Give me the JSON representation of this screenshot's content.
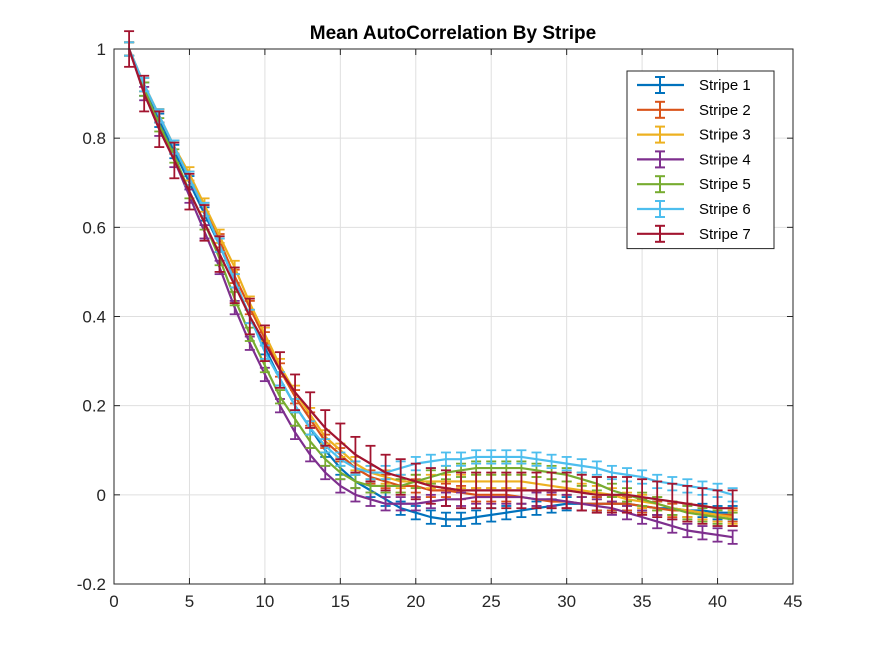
{
  "chart_data": {
    "type": "line",
    "title": "Mean AutoCorrelation By Stripe",
    "xlabel": "",
    "ylabel": "",
    "xlim": [
      0,
      45
    ],
    "ylim": [
      -0.2,
      1
    ],
    "x_ticks": [
      0,
      5,
      10,
      15,
      20,
      25,
      30,
      35,
      40,
      45
    ],
    "y_ticks": [
      -0.2,
      0,
      0.2,
      0.4,
      0.6,
      0.8,
      1
    ],
    "x_tick_labels": [
      "0",
      "5",
      "10",
      "15",
      "20",
      "25",
      "30",
      "35",
      "40",
      "45"
    ],
    "y_tick_labels": [
      "-0.2",
      "0",
      "0.2",
      "0.4",
      "0.6",
      "0.8",
      "1"
    ],
    "grid": true,
    "legend_position": "top-right",
    "x": [
      1,
      2,
      3,
      4,
      5,
      6,
      7,
      8,
      9,
      10,
      11,
      12,
      13,
      14,
      15,
      16,
      17,
      18,
      19,
      20,
      21,
      22,
      23,
      24,
      25,
      26,
      27,
      28,
      29,
      30,
      31,
      32,
      33,
      34,
      35,
      36,
      37,
      38,
      39,
      40,
      41
    ],
    "series": [
      {
        "name": "Stripe 1",
        "color": "#0072BD",
        "error": 0.015,
        "values": [
          1,
          0.91,
          0.84,
          0.77,
          0.7,
          0.63,
          0.56,
          0.48,
          0.4,
          0.33,
          0.26,
          0.2,
          0.15,
          0.1,
          0.06,
          0.03,
          0.01,
          -0.01,
          -0.03,
          -0.04,
          -0.05,
          -0.055,
          -0.055,
          -0.05,
          -0.045,
          -0.04,
          -0.035,
          -0.03,
          -0.025,
          -0.02,
          -0.02,
          -0.02,
          -0.02,
          -0.02,
          -0.025,
          -0.03,
          -0.03,
          -0.035,
          -0.035,
          -0.04,
          -0.04
        ]
      },
      {
        "name": "Stripe 2",
        "color": "#D95319",
        "error": 0.015,
        "values": [
          1,
          0.92,
          0.85,
          0.78,
          0.71,
          0.64,
          0.57,
          0.49,
          0.42,
          0.35,
          0.28,
          0.22,
          0.17,
          0.12,
          0.09,
          0.06,
          0.04,
          0.03,
          0.02,
          0.02,
          0.01,
          0.01,
          0.005,
          0,
          0,
          0,
          -0.005,
          -0.01,
          -0.015,
          -0.015,
          -0.02,
          -0.02,
          -0.02,
          -0.02,
          -0.025,
          -0.03,
          -0.035,
          -0.035,
          -0.04,
          -0.045,
          -0.045
        ]
      },
      {
        "name": "Stripe 3",
        "color": "#EDB120",
        "error": 0.015,
        "values": [
          1,
          0.92,
          0.85,
          0.78,
          0.72,
          0.65,
          0.58,
          0.51,
          0.43,
          0.36,
          0.29,
          0.23,
          0.18,
          0.13,
          0.1,
          0.07,
          0.05,
          0.04,
          0.03,
          0.03,
          0.03,
          0.03,
          0.03,
          0.03,
          0.03,
          0.03,
          0.03,
          0.025,
          0.02,
          0.015,
          0.01,
          0.005,
          0,
          -0.01,
          -0.015,
          -0.02,
          -0.03,
          -0.035,
          -0.04,
          -0.045,
          -0.05
        ]
      },
      {
        "name": "Stripe 4",
        "color": "#7E2F8E",
        "error": 0.015,
        "values": [
          1,
          0.9,
          0.82,
          0.75,
          0.67,
          0.59,
          0.51,
          0.42,
          0.34,
          0.27,
          0.2,
          0.14,
          0.09,
          0.05,
          0.02,
          0,
          -0.01,
          -0.02,
          -0.02,
          -0.02,
          -0.015,
          -0.01,
          -0.01,
          -0.005,
          -0.005,
          -0.005,
          -0.005,
          -0.01,
          -0.01,
          -0.015,
          -0.02,
          -0.025,
          -0.03,
          -0.04,
          -0.05,
          -0.06,
          -0.07,
          -0.08,
          -0.085,
          -0.09,
          -0.095
        ]
      },
      {
        "name": "Stripe 5",
        "color": "#77AC30",
        "error": 0.015,
        "values": [
          1,
          0.91,
          0.83,
          0.76,
          0.68,
          0.61,
          0.53,
          0.44,
          0.36,
          0.29,
          0.22,
          0.17,
          0.12,
          0.08,
          0.05,
          0.03,
          0.02,
          0.02,
          0.02,
          0.03,
          0.04,
          0.05,
          0.055,
          0.06,
          0.06,
          0.06,
          0.06,
          0.055,
          0.05,
          0.045,
          0.035,
          0.025,
          0.01,
          0,
          -0.01,
          -0.02,
          -0.03,
          -0.04,
          -0.045,
          -0.05,
          -0.055
        ]
      },
      {
        "name": "Stripe 6",
        "color": "#4DBEEE",
        "error": 0.015,
        "values": [
          1,
          0.92,
          0.85,
          0.78,
          0.71,
          0.64,
          0.56,
          0.48,
          0.4,
          0.32,
          0.26,
          0.2,
          0.15,
          0.11,
          0.08,
          0.06,
          0.05,
          0.05,
          0.06,
          0.07,
          0.075,
          0.08,
          0.08,
          0.085,
          0.085,
          0.085,
          0.085,
          0.08,
          0.075,
          0.07,
          0.065,
          0.06,
          0.05,
          0.045,
          0.04,
          0.03,
          0.025,
          0.02,
          0.015,
          0.01,
          0
        ]
      },
      {
        "name": "Stripe 7",
        "color": "#A2142F",
        "error": 0.04,
        "values": [
          1,
          0.9,
          0.82,
          0.75,
          0.68,
          0.61,
          0.54,
          0.47,
          0.4,
          0.34,
          0.28,
          0.23,
          0.19,
          0.15,
          0.12,
          0.09,
          0.07,
          0.05,
          0.04,
          0.03,
          0.02,
          0.015,
          0.01,
          0.01,
          0.01,
          0.01,
          0.01,
          0.01,
          0.01,
          0.01,
          0.005,
          0,
          0,
          0,
          -0.005,
          -0.01,
          -0.015,
          -0.02,
          -0.025,
          -0.03,
          -0.03
        ]
      }
    ]
  }
}
